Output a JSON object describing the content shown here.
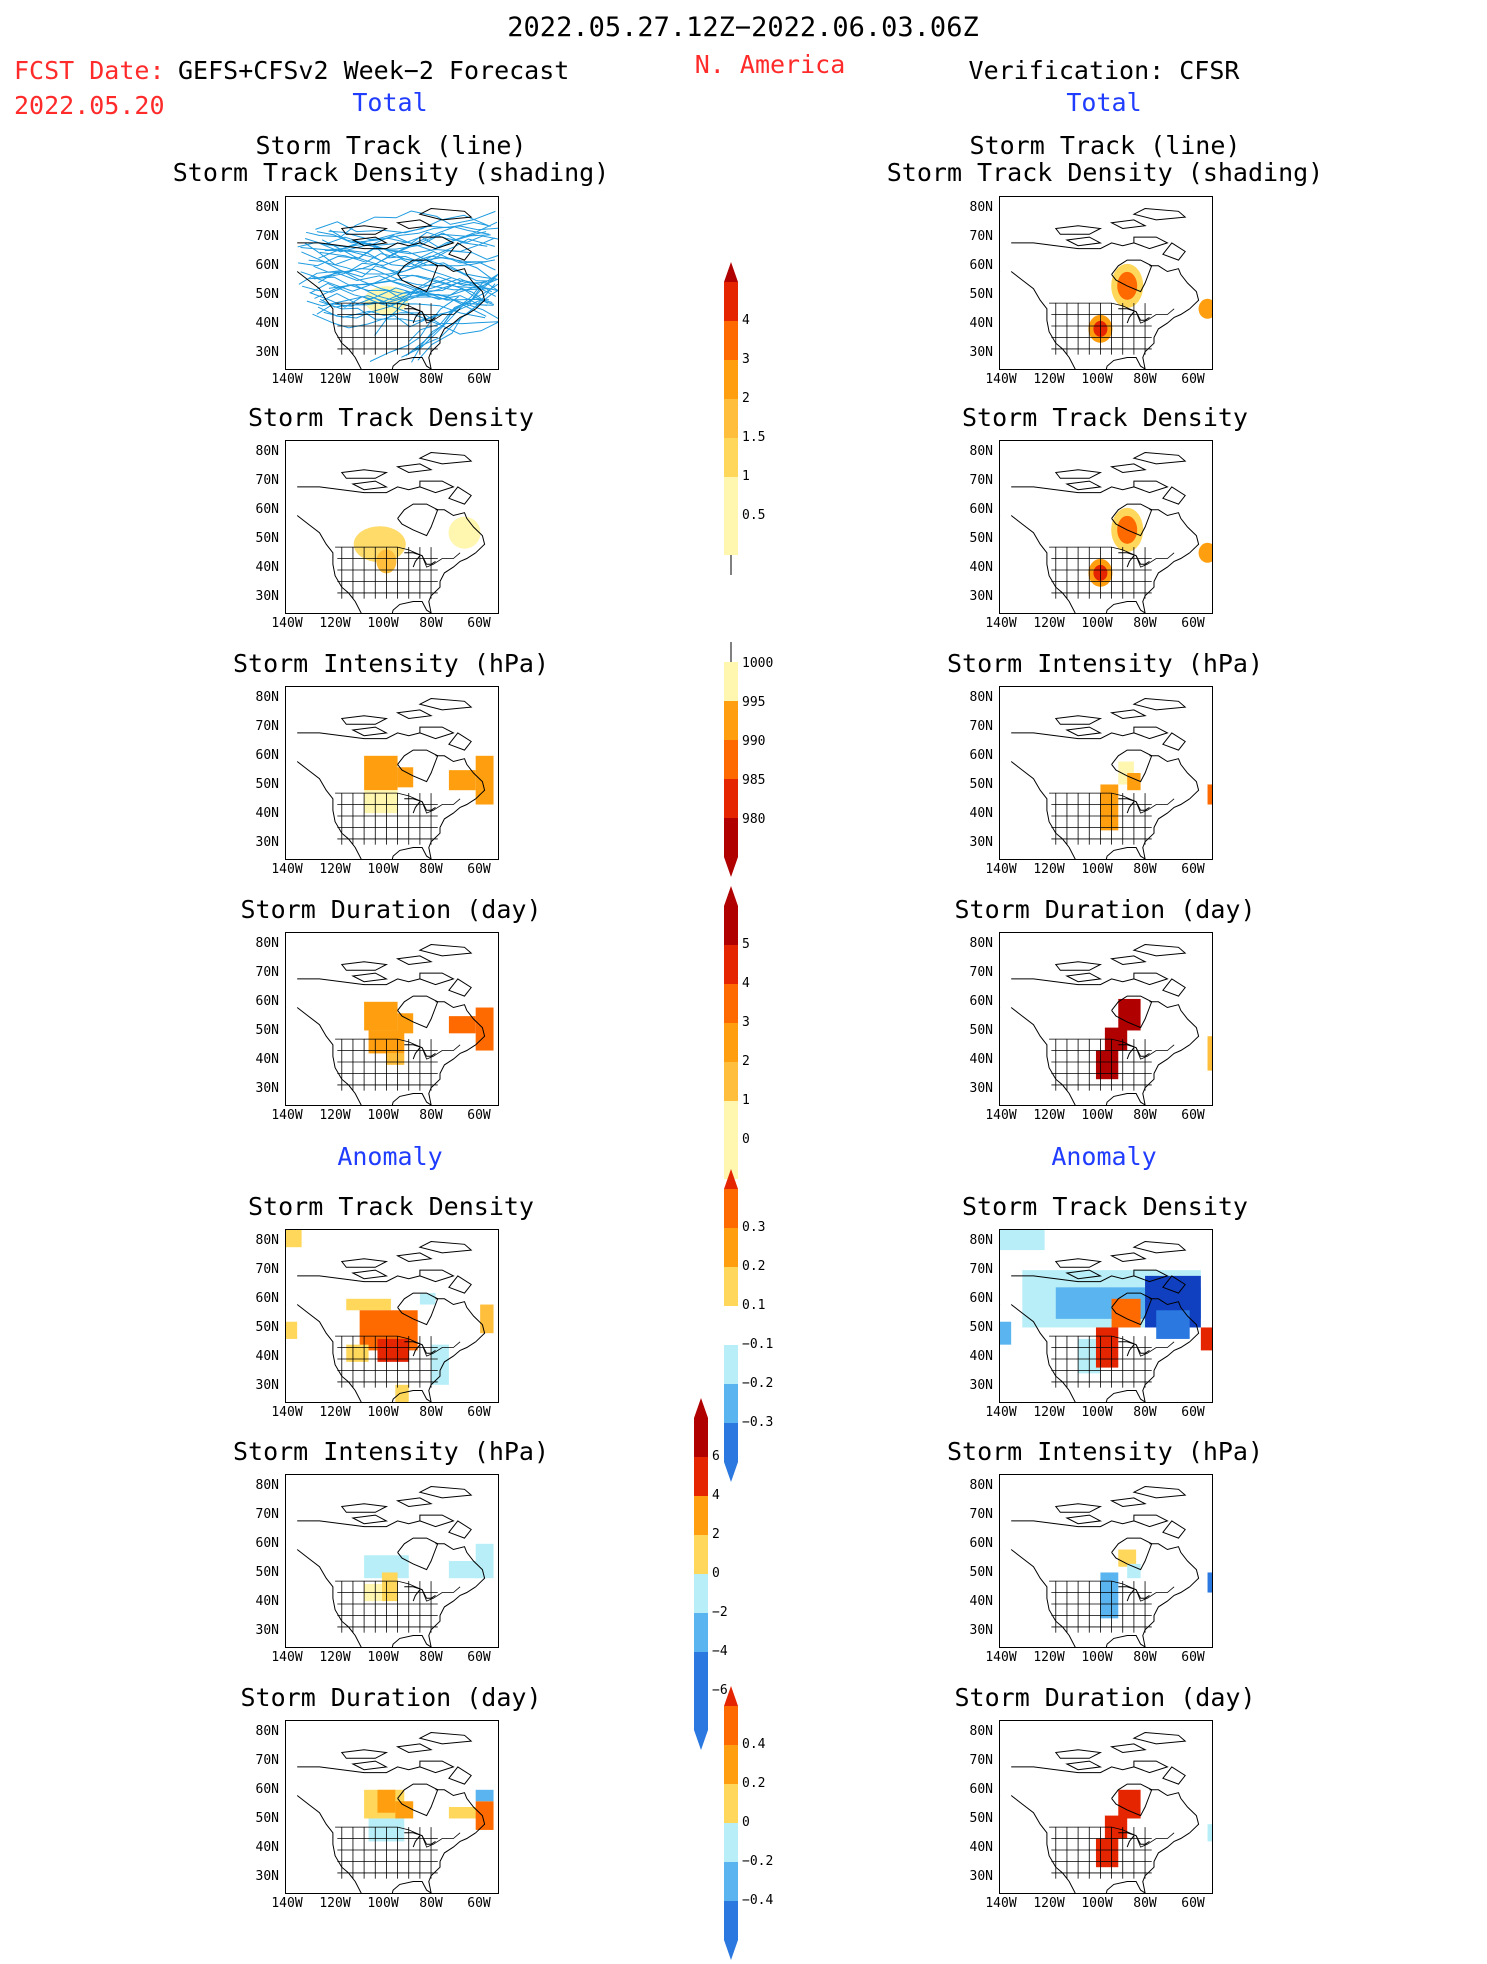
{
  "header": {
    "period": "2022.05.27.12Z−2022.06.03.06Z",
    "fcst_label": "FCST Date:",
    "fcst_date": "2022.05.20",
    "forecast_name": "GEFS+CFSv2 Week−2 Forecast",
    "region": "N. America",
    "verification": "Verification: CFSR",
    "total_left": "Total",
    "total_right": "Total",
    "anomaly_left": "Anomaly",
    "anomaly_right": "Anomaly"
  },
  "panels": {
    "track_line": [
      "Storm Track (line)",
      "Storm Track Density (shading)"
    ],
    "density": "Storm Track Density",
    "intensity": "Storm Intensity (hPa)",
    "duration": "Storm Duration (day)"
  },
  "axes": {
    "lat_ticks": [
      "80N",
      "70N",
      "60N",
      "50N",
      "40N",
      "30N"
    ],
    "lon_ticks": [
      "140W",
      "120W",
      "100W",
      "80W",
      "60W"
    ]
  },
  "colorbars": {
    "density_total": [
      "4",
      "3",
      "2",
      "1.5",
      "1",
      "0.5"
    ],
    "intensity_total": [
      "1000",
      "995",
      "990",
      "985",
      "980"
    ],
    "duration_total": [
      "5",
      "4",
      "3",
      "2",
      "1",
      "0"
    ],
    "density_anom": [
      "0.3",
      "0.2",
      "0.1",
      "−0.1",
      "−0.2",
      "−0.3"
    ],
    "intensity_anom": [
      "6",
      "4",
      "2",
      "0",
      "−2",
      "−4",
      "−6"
    ],
    "duration_anom": [
      "0.4",
      "0.2",
      "0",
      "−0.2",
      "−0.4"
    ]
  },
  "chart_data": {
    "type": "heatmap",
    "colors": {
      "pale_yellow": "#fff6b0",
      "yellow": "#ffd75a",
      "light_orange": "#ffbf3c",
      "orange": "#ff9f10",
      "dark_orange": "#ff6a00",
      "red": "#e52400",
      "dark_red": "#b00000",
      "light_blue": "#b7eef7",
      "blue": "#5ab4f0",
      "mid_blue": "#2a78e0",
      "dark_blue": "#1040c0",
      "track_line": "#1e9be0"
    }
  }
}
